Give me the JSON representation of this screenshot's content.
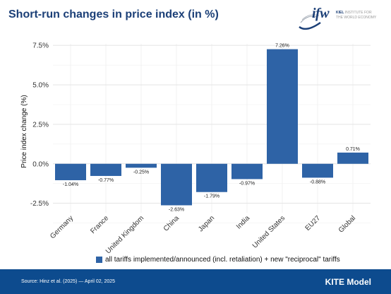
{
  "header": {
    "title": "Short-run changes in price index (in %)"
  },
  "logo": {
    "mark": "ifw",
    "line1_strong": "KIEL",
    "line1_rest": "INSTITUTE FOR",
    "line2": "THE WORLD ECONOMY"
  },
  "chart_data": {
    "type": "bar",
    "title": "",
    "xlabel": "",
    "ylabel": "Price index change (%)",
    "categories": [
      "Germany",
      "France",
      "United Kingdom",
      "China",
      "Japan",
      "India",
      "United States",
      "EU27",
      "Global"
    ],
    "series": [
      {
        "name": "all tariffs implemented/announced (incl. retaliation) + new \"reciprocal\" tariffs",
        "values": [
          -1.04,
          -0.77,
          -0.25,
          -2.63,
          -1.79,
          -0.97,
          7.26,
          -0.88,
          0.71
        ],
        "labels": [
          "-1.04%",
          "-0.77%",
          "-0.25%",
          "-2.63%",
          "-1.79%",
          "-0.97%",
          "7.26%",
          "-0.88%",
          "0.71%"
        ],
        "color": "#2e63a6"
      }
    ],
    "ylim": [
      -3.1,
      7.6
    ],
    "yticks": [
      -2.5,
      0,
      2.5,
      5,
      7.5
    ],
    "ytick_labels": [
      "-2.5%",
      "0.0%",
      "2.5%",
      "5.0%",
      "7.5%"
    ],
    "grid": true,
    "legend_position": "bottom"
  },
  "legend": {
    "label": "all tariffs implemented/announced (incl. retaliation) + new \"reciprocal\" tariffs"
  },
  "footer": {
    "source": "Source: Hinz et al. (2025) — April 02, 2025",
    "model": "KITE Model",
    "background": "#0d4b8e"
  }
}
